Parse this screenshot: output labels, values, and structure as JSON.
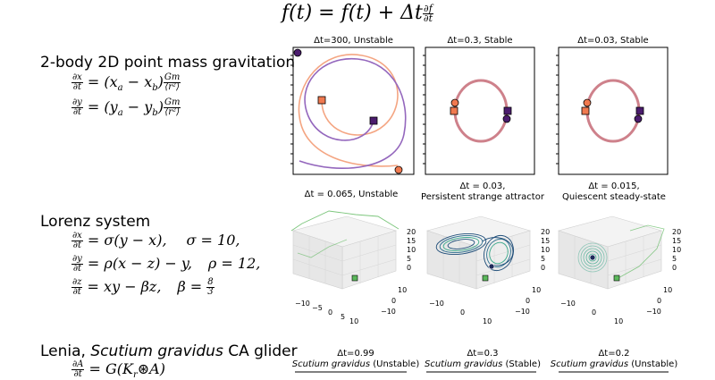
{
  "header": {
    "lhs": "f(t) = f(t) + Δt",
    "frac_num": "∂f",
    "frac_den": "∂t"
  },
  "gravity": {
    "title": "2-body 2D point mass gravitation",
    "eq1": {
      "lhs_num": "∂x",
      "lhs_den": "∂t",
      "body": "= (x",
      "sub_a": "a",
      "minus": " − x",
      "sub_b": "b",
      "close": ")",
      "rhs_num": "Gm",
      "rhs_den": "⟨r²⟩"
    },
    "eq2": {
      "lhs_num": "∂y",
      "lhs_den": "∂t",
      "body": "= (y",
      "sub_a": "a",
      "minus": " − y",
      "sub_b": "b",
      "close": ")",
      "rhs_num": "Gm",
      "rhs_den": "⟨r²⟩"
    },
    "panels": [
      "Δt=300, Unstable",
      "Δt=0.3, Stable",
      "Δt=0.03, Stable"
    ]
  },
  "lorenz": {
    "title": "Lorenz system",
    "eq1": {
      "lhs_num": "∂x",
      "lhs_den": "∂t",
      "body": "= σ(y − x),",
      "param": "σ = 10,"
    },
    "eq2": {
      "lhs_num": "∂y",
      "lhs_den": "∂t",
      "body": "= ρ(x − z) − y,",
      "param": "ρ = 12,"
    },
    "eq3": {
      "lhs_num": "∂z",
      "lhs_den": "∂t",
      "body": "= xy − βz,",
      "param": "β =",
      "param_num": "8",
      "param_den": "3"
    },
    "panels": [
      {
        "line1": "Δt = 0.065, Unstable",
        "line2": ""
      },
      {
        "line1": "Δt = 0.03,",
        "line2": "Persistent strange attractor"
      },
      {
        "line1": "Δt = 0.015,",
        "line2": "Quiescent steady-state"
      }
    ],
    "z_ticks": [
      "20",
      "15",
      "10",
      "5",
      "0"
    ],
    "y_ticks": [
      "10",
      "0",
      "−10"
    ],
    "x_ticks": [
      "−10",
      "0",
      "10"
    ],
    "x_ticks_first": [
      "−10",
      "−5",
      "0",
      "5",
      "10"
    ]
  },
  "lenia": {
    "title_prefix": "Lenia, ",
    "title_species": "Scutium gravidus",
    "title_suffix": " CA glider",
    "eq_num": "∂A",
    "eq_den": "∂t",
    "eq_body": "= G(K",
    "eq_sub": "r",
    "eq_rest": "⊛A)",
    "panels": [
      {
        "line1": "Δt=0.99",
        "species": "Scutium gravidus",
        "state": " (Unstable)"
      },
      {
        "line1": "Δt=0.3",
        "species": "Scutium gravidus",
        "state": " (Stable)"
      },
      {
        "line1": "Δt=0.2",
        "species": "Scutium gravidus",
        "state": " (Unstable)"
      }
    ]
  },
  "colors": {
    "orbit_purple": "#9467bd",
    "orbit_salmon": "#f4a582",
    "orbit_rose": "#c9737e",
    "body_a": "#f0794f",
    "body_b": "#4b1c6e",
    "lorenz_teal": "#3aa88a",
    "lorenz_dark": "#1f4e79",
    "lorenz_green": "#5cb85c"
  }
}
